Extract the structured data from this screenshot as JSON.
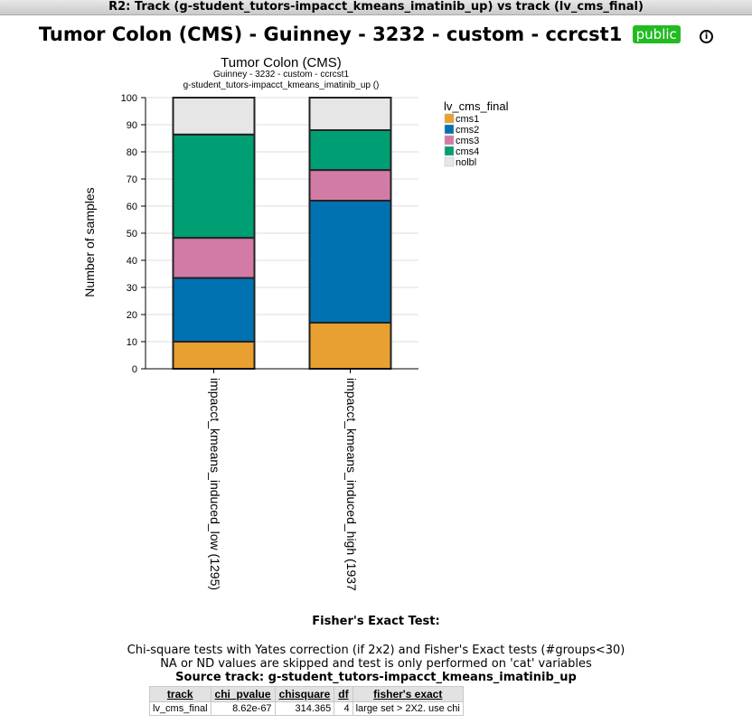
{
  "window_title": "R2: Track (g-student_tutors-impacct_kmeans_imatinib_up) vs track (lv_cms_final)",
  "page_title": "Tumor Colon (CMS) - Guinney - 3232 - custom - ccrcst1",
  "public_badge": "public",
  "info_icon": "i",
  "chart_data": {
    "type": "bar",
    "stacked": true,
    "title": "Tumor Colon (CMS)",
    "subtitle1": "Guinney - 3232 - custom - ccrcst1",
    "subtitle2": "g-student_tutors-impacct_kmeans_imatinib_up ()",
    "ylabel": "Number of samples",
    "ylim": [
      0,
      100
    ],
    "yticks": [
      "0",
      "10",
      "20",
      "30",
      "40",
      "50",
      "60",
      "70",
      "80",
      "90",
      "100"
    ],
    "categories": [
      "impacct_kmeans_induced_low (1295)",
      "impacct_kmeans_induced_high (1937"
    ],
    "legend_title": "lv_cms_final",
    "legend_position": "right",
    "series": [
      {
        "name": "cms1",
        "color": "#e8a030",
        "values": [
          10,
          17
        ]
      },
      {
        "name": "cms2",
        "color": "#0072b2",
        "values": [
          23.5,
          45
        ]
      },
      {
        "name": "cms3",
        "color": "#d27ba6",
        "values": [
          14.8,
          11.3
        ]
      },
      {
        "name": "cms4",
        "color": "#009e73",
        "values": [
          38.1,
          14.7
        ]
      },
      {
        "name": "nolbl",
        "color": "#e6e6e6",
        "values": [
          13.6,
          12
        ]
      }
    ]
  },
  "fisher_heading": "Fisher's Exact Test:",
  "notes": {
    "line1": "Chi-square tests with Yates correction (if 2x2) and Fisher's Exact tests (#groups<30)",
    "line2": "NA or ND values are skipped and test is only performed on 'cat' variables",
    "source": "Source track: g-student_tutors-impacct_kmeans_imatinib_up"
  },
  "stats_table": {
    "headers": [
      "track",
      "chi_pvalue",
      "chisquare",
      "df",
      "fisher's exact"
    ],
    "row": [
      "lv_cms_final",
      "8.62e-67",
      "314.365",
      "4",
      "large set > 2X2. use chi"
    ]
  }
}
